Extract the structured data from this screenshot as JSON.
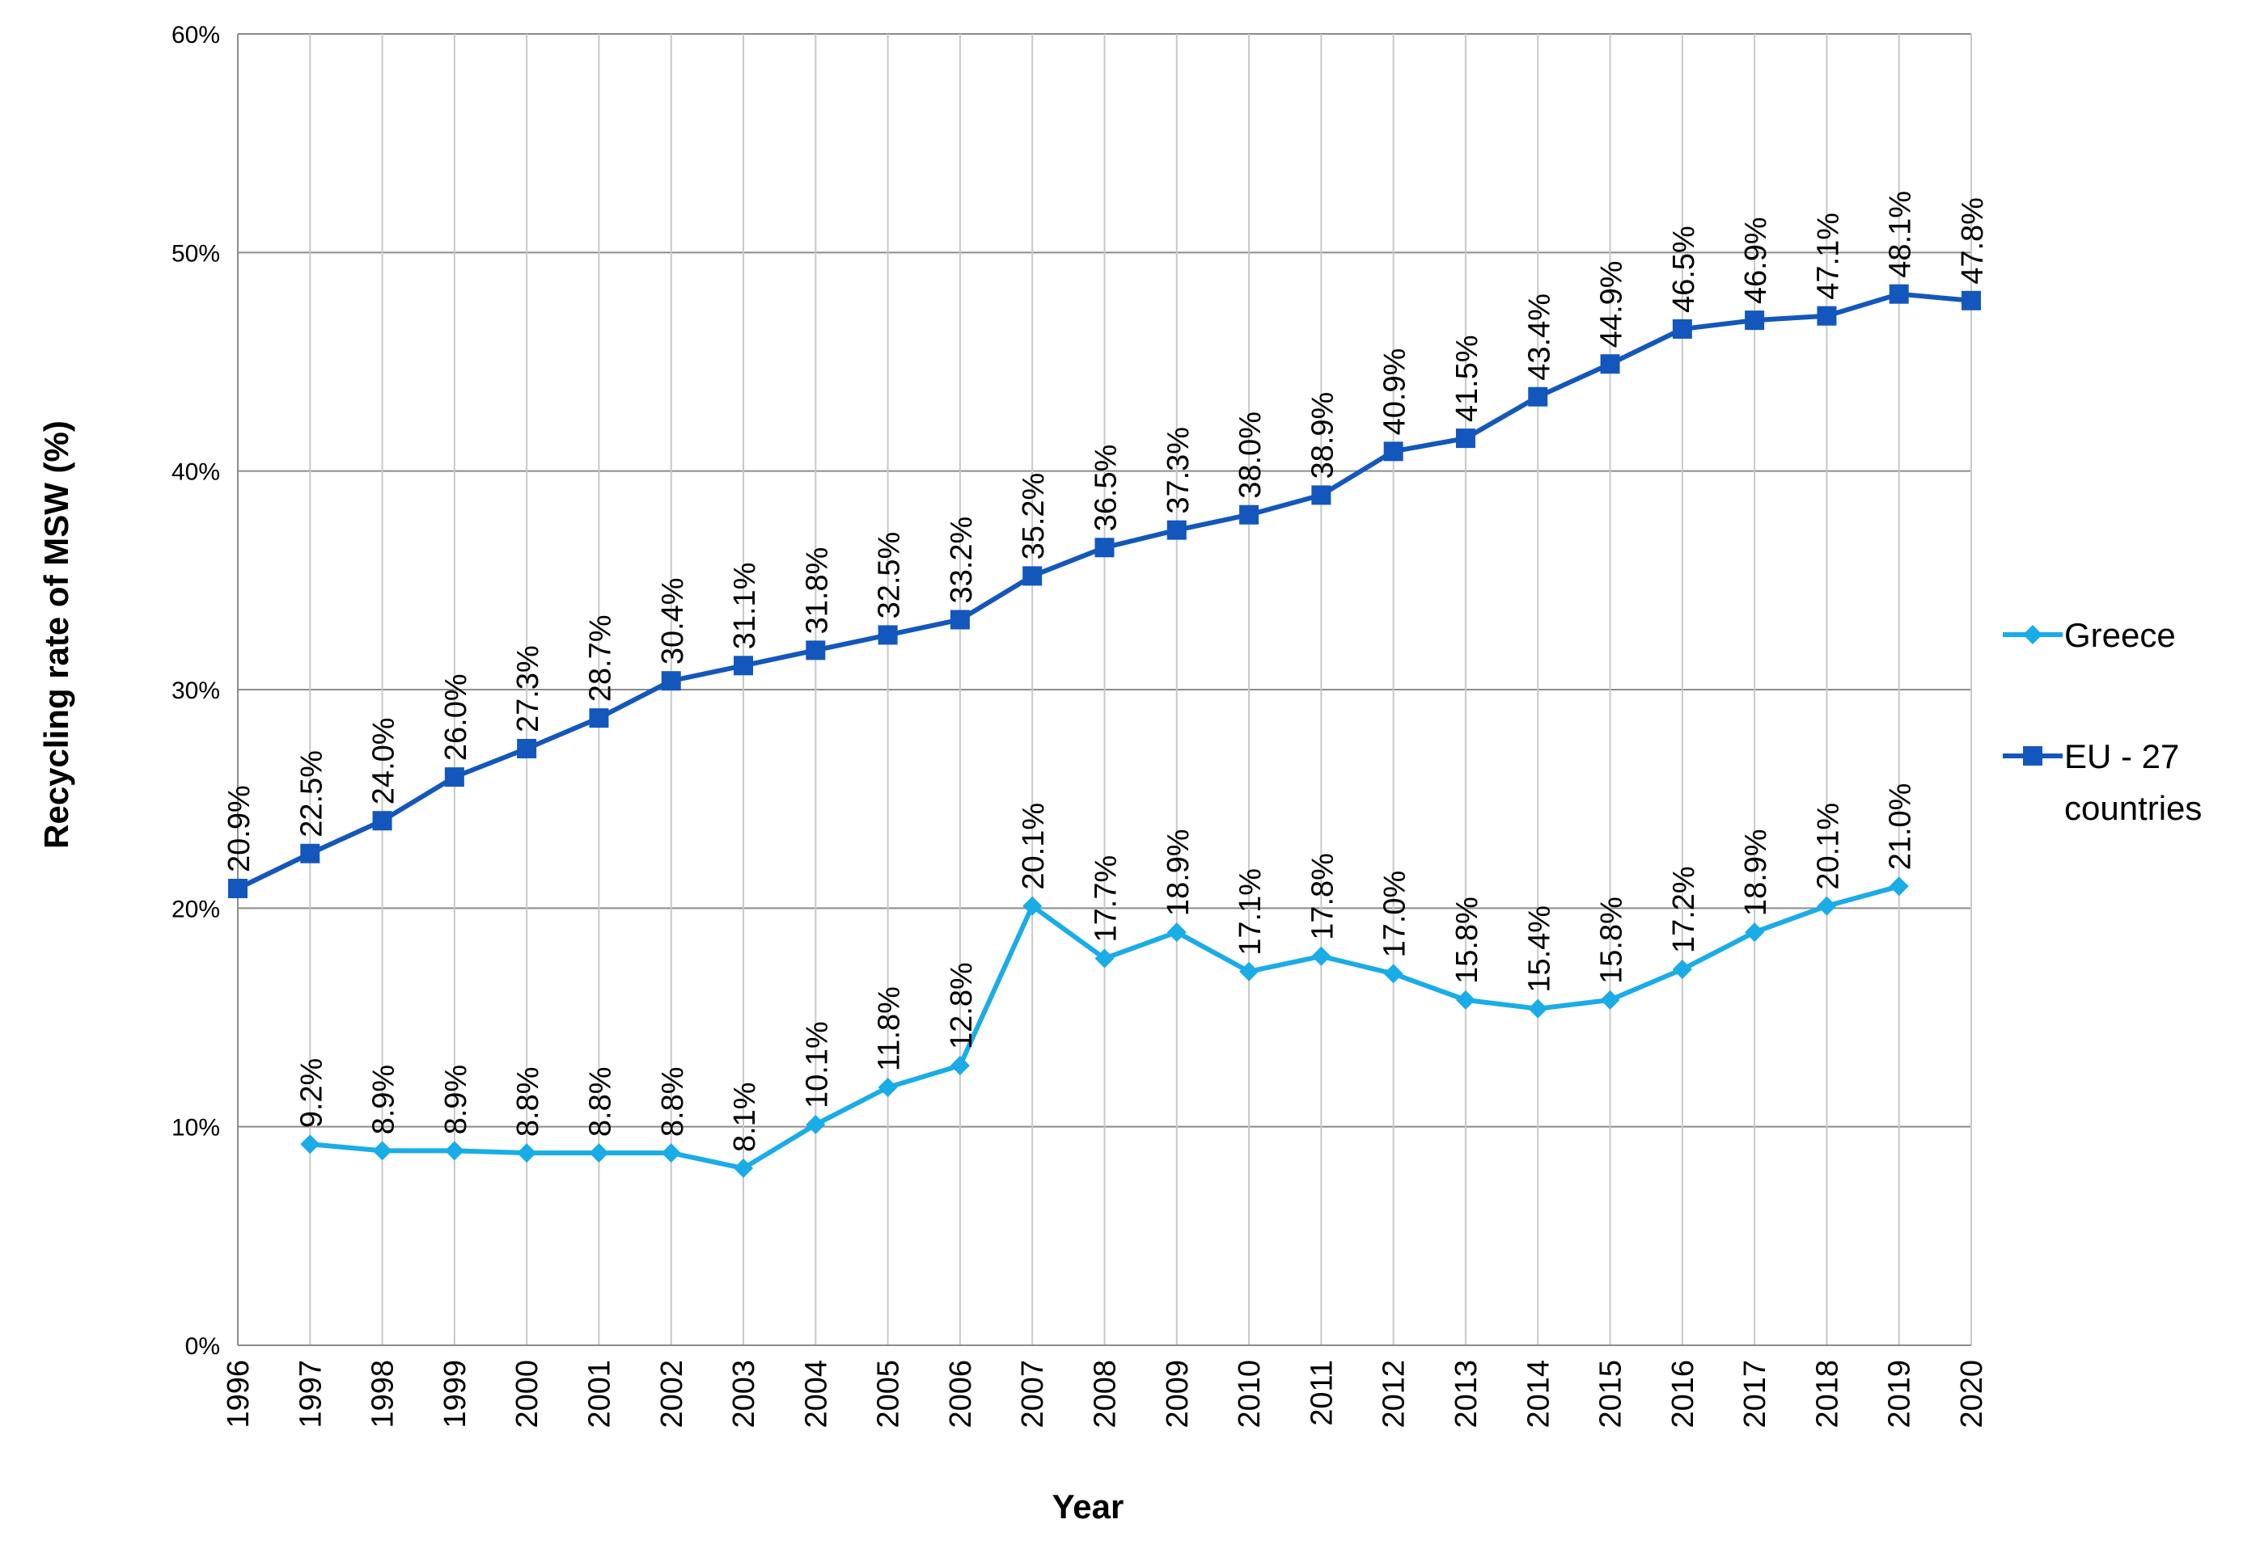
{
  "chart_data": {
    "type": "line",
    "title": "",
    "xlabel": "Year",
    "ylabel": "Recycling rate of  MSW (%)",
    "ylim": [
      0,
      60
    ],
    "y_ticks": [
      0,
      10,
      20,
      30,
      40,
      50,
      60
    ],
    "y_tick_labels": [
      "0%",
      "10%",
      "20%",
      "30%",
      "40%",
      "50%",
      "60%"
    ],
    "grid": true,
    "legend_position": "right",
    "categories": [
      "1996",
      "1997",
      "1998",
      "1999",
      "2000",
      "2001",
      "2002",
      "2003",
      "2004",
      "2005",
      "2006",
      "2007",
      "2008",
      "2009",
      "2010",
      "2011",
      "2012",
      "2013",
      "2014",
      "2015",
      "2016",
      "2017",
      "2018",
      "2019",
      "2020"
    ],
    "series": [
      {
        "name": "Greece",
        "color": "#1AACE6",
        "marker": "diamond",
        "values": [
          null,
          9.2,
          8.9,
          8.9,
          8.8,
          8.8,
          8.8,
          8.1,
          10.1,
          11.8,
          12.8,
          20.1,
          17.7,
          18.9,
          17.1,
          17.8,
          17.0,
          15.8,
          15.4,
          15.8,
          17.2,
          18.9,
          20.1,
          21.0,
          null
        ],
        "labels": [
          null,
          "9.2%",
          "8.9%",
          "8.9%",
          "8.8%",
          "8.8%",
          "8.8%",
          "8.1%",
          "10.1%",
          "11.8%",
          "12.8%",
          "20.1%",
          "17.7%",
          "18.9%",
          "17.1%",
          "17.8%",
          "17.0%",
          "15.8%",
          "15.4%",
          "15.8%",
          "17.2%",
          "18.9%",
          "20.1%",
          "21.0%",
          null
        ]
      },
      {
        "name": "EU - 27 countries",
        "legend_lines": [
          "EU - 27",
          "countries"
        ],
        "color": "#1457BC",
        "marker": "square",
        "values": [
          20.9,
          22.5,
          24.0,
          26.0,
          27.3,
          28.7,
          30.4,
          31.1,
          31.8,
          32.5,
          33.2,
          35.2,
          36.5,
          37.3,
          38.0,
          38.9,
          40.9,
          41.5,
          43.4,
          44.9,
          46.5,
          46.9,
          47.1,
          48.1,
          47.8
        ],
        "labels": [
          "20.9%",
          "22.5%",
          "24.0%",
          "26.0%",
          "27.3%",
          "28.7%",
          "30.4%",
          "31.1%",
          "31.8%",
          "32.5%",
          "33.2%",
          "35.2%",
          "36.5%",
          "37.3%",
          "38.0%",
          "38.9%",
          "40.9%",
          "41.5%",
          "43.4%",
          "44.9%",
          "46.5%",
          "46.9%",
          "47.1%",
          "48.1%",
          "47.8%"
        ]
      }
    ]
  }
}
